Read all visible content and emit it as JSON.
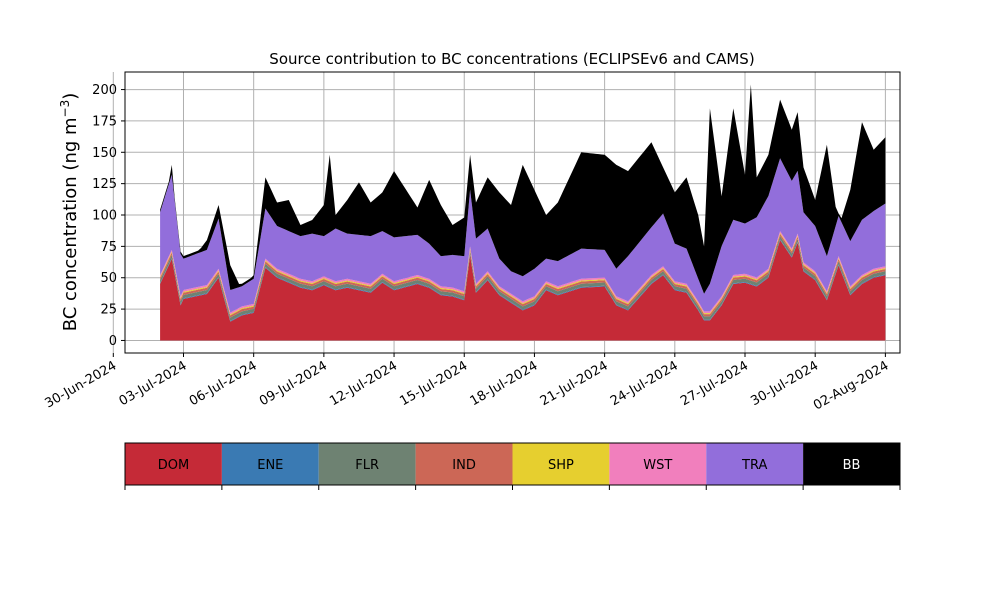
{
  "chart_data": {
    "type": "area",
    "stacked": true,
    "title": "Source contribution to BC concentrations (ECLIPSEv6 and CAMS)",
    "ylabel_main": "BC concentration (ng m",
    "ylabel_sup": "−3",
    "ylabel_close": ")",
    "xlabel": "",
    "x_start": "2024-07-02",
    "x_end": "2024-08-02",
    "xlim": [
      "2024-06-30T12:00",
      "2024-08-02T15:00"
    ],
    "ylim": [
      -10,
      214
    ],
    "grid": true,
    "xticks": [
      {
        "date": "2024-06-30",
        "label": "30-Jun-2024"
      },
      {
        "date": "2024-07-03",
        "label": "03-Jul-2024"
      },
      {
        "date": "2024-07-06",
        "label": "06-Jul-2024"
      },
      {
        "date": "2024-07-09",
        "label": "09-Jul-2024"
      },
      {
        "date": "2024-07-12",
        "label": "12-Jul-2024"
      },
      {
        "date": "2024-07-15",
        "label": "15-Jul-2024"
      },
      {
        "date": "2024-07-18",
        "label": "18-Jul-2024"
      },
      {
        "date": "2024-07-21",
        "label": "21-Jul-2024"
      },
      {
        "date": "2024-07-24",
        "label": "24-Jul-2024"
      },
      {
        "date": "2024-07-27",
        "label": "27-Jul-2024"
      },
      {
        "date": "2024-07-30",
        "label": "30-Jul-2024"
      },
      {
        "date": "2024-08-02",
        "label": "02-Aug-2024"
      }
    ],
    "yticks": [
      0,
      25,
      50,
      75,
      100,
      125,
      150,
      175,
      200
    ],
    "series": [
      {
        "name": "DOM",
        "color": "#c52a37"
      },
      {
        "name": "ENE",
        "color": "#3a7ab3"
      },
      {
        "name": "FLR",
        "color": "#6e8272"
      },
      {
        "name": "IND",
        "color": "#cc6756"
      },
      {
        "name": "SHP",
        "color": "#e6cf2f"
      },
      {
        "name": "WST",
        "color": "#f17fbd"
      },
      {
        "name": "TRA",
        "color": "#926edb"
      },
      {
        "name": "BB",
        "color": "#000000"
      }
    ],
    "dom_keys": [
      [
        "2024-07-02",
        45
      ],
      [
        "2024-07-02T12:00",
        65
      ],
      [
        "2024-07-02T21:00",
        28
      ],
      [
        "2024-07-03",
        33
      ],
      [
        "2024-07-04",
        37
      ],
      [
        "2024-07-04T12:00",
        50
      ],
      [
        "2024-07-05",
        15
      ],
      [
        "2024-07-05T12:00",
        20
      ],
      [
        "2024-07-06",
        22
      ],
      [
        "2024-07-06T12:00",
        58
      ],
      [
        "2024-07-07",
        50
      ],
      [
        "2024-07-08",
        42
      ],
      [
        "2024-07-08T12:00",
        40
      ],
      [
        "2024-07-09",
        44
      ],
      [
        "2024-07-09T12:00",
        40
      ],
      [
        "2024-07-10",
        42
      ],
      [
        "2024-07-11",
        38
      ],
      [
        "2024-07-11T12:00",
        46
      ],
      [
        "2024-07-12",
        40
      ],
      [
        "2024-07-13",
        45
      ],
      [
        "2024-07-13T12:00",
        42
      ],
      [
        "2024-07-14",
        36
      ],
      [
        "2024-07-14T12:00",
        35
      ],
      [
        "2024-07-15",
        32
      ],
      [
        "2024-07-15T06:00",
        68
      ],
      [
        "2024-07-15T12:00",
        38
      ],
      [
        "2024-07-16",
        48
      ],
      [
        "2024-07-16T12:00",
        36
      ],
      [
        "2024-07-17",
        30
      ],
      [
        "2024-07-17T12:00",
        24
      ],
      [
        "2024-07-18",
        28
      ],
      [
        "2024-07-18T12:00",
        40
      ],
      [
        "2024-07-19",
        36
      ],
      [
        "2024-07-20",
        42
      ],
      [
        "2024-07-21",
        43
      ],
      [
        "2024-07-21T12:00",
        28
      ],
      [
        "2024-07-22",
        24
      ],
      [
        "2024-07-23",
        45
      ],
      [
        "2024-07-23T12:00",
        52
      ],
      [
        "2024-07-24",
        40
      ],
      [
        "2024-07-24T12:00",
        38
      ],
      [
        "2024-07-25",
        24
      ],
      [
        "2024-07-25T06:00",
        16
      ],
      [
        "2024-07-25T12:00",
        16
      ],
      [
        "2024-07-26",
        28
      ],
      [
        "2024-07-26T12:00",
        45
      ],
      [
        "2024-07-27",
        46
      ],
      [
        "2024-07-27T12:00",
        43
      ],
      [
        "2024-07-28",
        50
      ],
      [
        "2024-07-28T12:00",
        80
      ],
      [
        "2024-07-29",
        66
      ],
      [
        "2024-07-29T06:00",
        78
      ],
      [
        "2024-07-29T12:00",
        55
      ],
      [
        "2024-07-30",
        48
      ],
      [
        "2024-07-30T12:00",
        32
      ],
      [
        "2024-07-31",
        60
      ],
      [
        "2024-07-31T12:00",
        36
      ],
      [
        "2024-08-01",
        45
      ],
      [
        "2024-08-01T12:00",
        50
      ],
      [
        "2024-08-02",
        52
      ]
    ],
    "tra_keys": [
      [
        "2024-07-02",
        50
      ],
      [
        "2024-07-02T12:00",
        60
      ],
      [
        "2024-07-03",
        25
      ],
      [
        "2024-07-04",
        28
      ],
      [
        "2024-07-04T12:00",
        40
      ],
      [
        "2024-07-05",
        18
      ],
      [
        "2024-07-05T12:00",
        16
      ],
      [
        "2024-07-06",
        20
      ],
      [
        "2024-07-06T12:00",
        40
      ],
      [
        "2024-07-07",
        34
      ],
      [
        "2024-07-08",
        34
      ],
      [
        "2024-07-08T12:00",
        38
      ],
      [
        "2024-07-09",
        32
      ],
      [
        "2024-07-09T12:00",
        42
      ],
      [
        "2024-07-10",
        36
      ],
      [
        "2024-07-11",
        38
      ],
      [
        "2024-07-11T12:00",
        34
      ],
      [
        "2024-07-12",
        35
      ],
      [
        "2024-07-13",
        32
      ],
      [
        "2024-07-13T12:00",
        28
      ],
      [
        "2024-07-14",
        24
      ],
      [
        "2024-07-14T12:00",
        26
      ],
      [
        "2024-07-15",
        28
      ],
      [
        "2024-07-15T06:00",
        45
      ],
      [
        "2024-07-15T12:00",
        36
      ],
      [
        "2024-07-16",
        34
      ],
      [
        "2024-07-16T12:00",
        22
      ],
      [
        "2024-07-17",
        18
      ],
      [
        "2024-07-17T12:00",
        20
      ],
      [
        "2024-07-18",
        22
      ],
      [
        "2024-07-18T12:00",
        18
      ],
      [
        "2024-07-19",
        20
      ],
      [
        "2024-07-20",
        24
      ],
      [
        "2024-07-21",
        22
      ],
      [
        "2024-07-21T12:00",
        22
      ],
      [
        "2024-07-22",
        36
      ],
      [
        "2024-07-23",
        38
      ],
      [
        "2024-07-23T12:00",
        42
      ],
      [
        "2024-07-24",
        30
      ],
      [
        "2024-07-24T12:00",
        28
      ],
      [
        "2024-07-25",
        18
      ],
      [
        "2024-07-25T06:00",
        14
      ],
      [
        "2024-07-25T12:00",
        22
      ],
      [
        "2024-07-26",
        40
      ],
      [
        "2024-07-26T12:00",
        44
      ],
      [
        "2024-07-27",
        40
      ],
      [
        "2024-07-27T12:00",
        48
      ],
      [
        "2024-07-28",
        58
      ],
      [
        "2024-07-28T12:00",
        58
      ],
      [
        "2024-07-29",
        54
      ],
      [
        "2024-07-29T06:00",
        50
      ],
      [
        "2024-07-29T12:00",
        40
      ],
      [
        "2024-07-30",
        36
      ],
      [
        "2024-07-30T12:00",
        28
      ],
      [
        "2024-07-31",
        32
      ],
      [
        "2024-07-31T12:00",
        36
      ],
      [
        "2024-08-01",
        44
      ],
      [
        "2024-08-01T12:00",
        46
      ],
      [
        "2024-08-02",
        50
      ]
    ],
    "total_keys": [
      [
        "2024-07-02",
        98
      ],
      [
        "2024-07-02T06:00",
        110
      ],
      [
        "2024-07-02T12:00",
        140
      ],
      [
        "2024-07-02T21:00",
        60
      ],
      [
        "2024-07-03",
        55
      ],
      [
        "2024-07-04",
        80
      ],
      [
        "2024-07-04T12:00",
        108
      ],
      [
        "2024-07-05",
        60
      ],
      [
        "2024-07-05T12:00",
        40
      ],
      [
        "2024-07-06",
        52
      ],
      [
        "2024-07-06T12:00",
        130
      ],
      [
        "2024-07-07",
        110
      ],
      [
        "2024-07-07T12:00",
        112
      ],
      [
        "2024-07-08",
        92
      ],
      [
        "2024-07-08T12:00",
        96
      ],
      [
        "2024-07-09",
        108
      ],
      [
        "2024-07-09T06:00",
        148
      ],
      [
        "2024-07-09T12:00",
        100
      ],
      [
        "2024-07-10",
        112
      ],
      [
        "2024-07-10T12:00",
        126
      ],
      [
        "2024-07-11",
        110
      ],
      [
        "2024-07-11T12:00",
        118
      ],
      [
        "2024-07-12",
        135
      ],
      [
        "2024-07-13",
        106
      ],
      [
        "2024-07-13T12:00",
        128
      ],
      [
        "2024-07-14",
        108
      ],
      [
        "2024-07-14T12:00",
        92
      ],
      [
        "2024-07-15",
        98
      ],
      [
        "2024-07-15T06:00",
        148
      ],
      [
        "2024-07-15T12:00",
        110
      ],
      [
        "2024-07-16",
        130
      ],
      [
        "2024-07-16T12:00",
        118
      ],
      [
        "2024-07-17",
        108
      ],
      [
        "2024-07-17T12:00",
        140
      ],
      [
        "2024-07-18",
        120
      ],
      [
        "2024-07-18T12:00",
        100
      ],
      [
        "2024-07-19",
        110
      ],
      [
        "2024-07-20",
        150
      ],
      [
        "2024-07-21",
        148
      ],
      [
        "2024-07-21T12:00",
        140
      ],
      [
        "2024-07-22",
        135
      ],
      [
        "2024-07-23",
        158
      ],
      [
        "2024-07-23T12:00",
        138
      ],
      [
        "2024-07-24",
        118
      ],
      [
        "2024-07-24T12:00",
        130
      ],
      [
        "2024-07-25",
        100
      ],
      [
        "2024-07-25T06:00",
        75
      ],
      [
        "2024-07-25T12:00",
        185
      ],
      [
        "2024-07-26",
        115
      ],
      [
        "2024-07-26T12:00",
        185
      ],
      [
        "2024-07-27",
        132
      ],
      [
        "2024-07-27T06:00",
        204
      ],
      [
        "2024-07-27T12:00",
        130
      ],
      [
        "2024-07-28",
        148
      ],
      [
        "2024-07-28T12:00",
        192
      ],
      [
        "2024-07-29",
        168
      ],
      [
        "2024-07-29T06:00",
        182
      ],
      [
        "2024-07-29T12:00",
        138
      ],
      [
        "2024-07-30",
        112
      ],
      [
        "2024-07-30T12:00",
        156
      ],
      [
        "2024-07-31",
        90
      ],
      [
        "2024-07-31T12:00",
        120
      ],
      [
        "2024-08-01",
        174
      ],
      [
        "2024-08-01T12:00",
        152
      ],
      [
        "2024-08-02",
        162
      ]
    ],
    "fixed_layers": {
      "ENE": 0.6,
      "FLR": 2.6,
      "IND": 1.8,
      "SHP": 0.8,
      "WST": 1.4
    }
  },
  "legend": {
    "items": [
      {
        "label": "DOM",
        "color": "#c52a37",
        "text_color": "#000000"
      },
      {
        "label": "ENE",
        "color": "#3a7ab3",
        "text_color": "#000000"
      },
      {
        "label": "FLR",
        "color": "#6e8272",
        "text_color": "#000000"
      },
      {
        "label": "IND",
        "color": "#cc6756",
        "text_color": "#000000"
      },
      {
        "label": "SHP",
        "color": "#e6cf2f",
        "text_color": "#000000"
      },
      {
        "label": "WST",
        "color": "#f17fbd",
        "text_color": "#000000"
      },
      {
        "label": "TRA",
        "color": "#926edb",
        "text_color": "#000000"
      },
      {
        "label": "BB",
        "color": "#000000",
        "text_color": "#ffffff"
      }
    ]
  }
}
